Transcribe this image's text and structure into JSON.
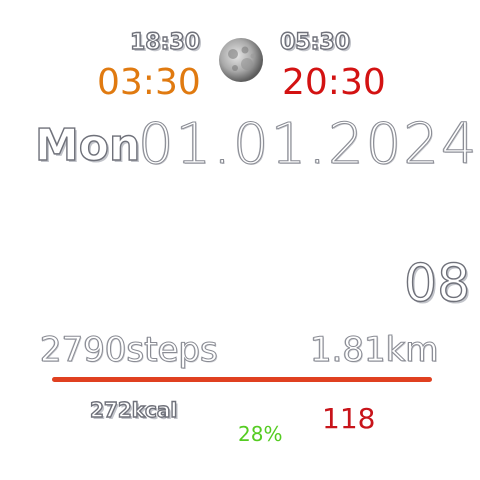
{
  "sun": {
    "sunset_small": "18:30",
    "sunrise_small": "05:30",
    "sunset_big": "03:30",
    "sunrise_big": "20:30"
  },
  "moon_icon": "full-moon-icon",
  "date": {
    "weekday": "Mon",
    "value": "01.01.2024"
  },
  "seconds": "08",
  "activity": {
    "steps": "2790steps",
    "distance": "1.81km",
    "calories": "272kcal",
    "progress_percent": 100
  },
  "battery": "28%",
  "heart_rate": "118",
  "colors": {
    "orange": "#e07a10",
    "red": "#d31212",
    "progress": "#e04020",
    "battery": "#55cc22"
  }
}
